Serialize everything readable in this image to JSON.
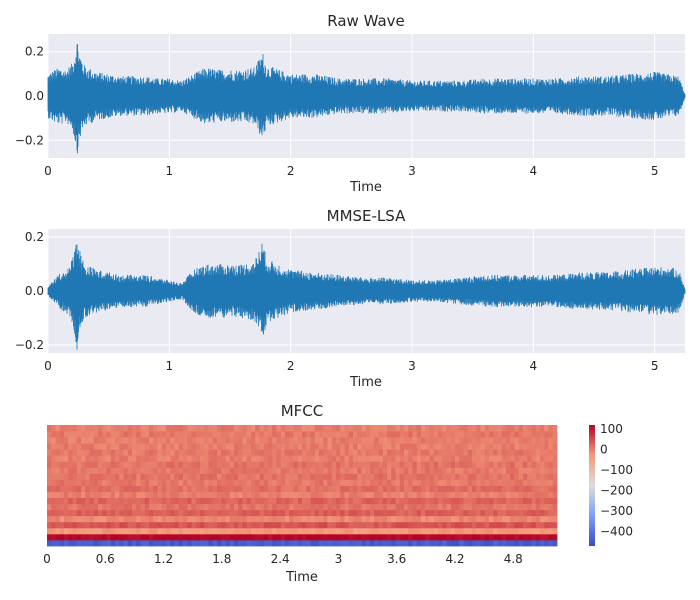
{
  "chart_data": [
    {
      "type": "line",
      "title": "Raw Wave",
      "xlabel": "Time",
      "ylabel": "",
      "xlim": [
        0,
        5.25
      ],
      "ylim": [
        -0.28,
        0.28
      ],
      "xticks": [
        0,
        1,
        2,
        3,
        4,
        5
      ],
      "yticks": [
        -0.2,
        0.0,
        0.2
      ],
      "xtick_labels": [
        "0",
        "1",
        "2",
        "3",
        "4",
        "5"
      ],
      "ytick_labels": [
        "−0.2",
        "0.0",
        "0.2"
      ],
      "grid": true,
      "series_color": "#1f77b4",
      "envelope": {
        "time": [
          0,
          0.05,
          0.1,
          0.15,
          0.2,
          0.22,
          0.24,
          0.26,
          0.3,
          0.4,
          0.5,
          0.6,
          0.7,
          0.8,
          0.9,
          1.0,
          1.1,
          1.2,
          1.3,
          1.4,
          1.5,
          1.6,
          1.7,
          1.77,
          1.8,
          1.9,
          2.0,
          2.2,
          2.4,
          2.6,
          2.8,
          3.0,
          3.2,
          3.4,
          3.6,
          3.8,
          4.0,
          4.2,
          4.4,
          4.6,
          4.8,
          5.0,
          5.1,
          5.2,
          5.25
        ],
        "amplitude": [
          0.1,
          0.12,
          0.13,
          0.12,
          0.15,
          0.2,
          0.27,
          0.2,
          0.14,
          0.11,
          0.1,
          0.09,
          0.09,
          0.09,
          0.08,
          0.08,
          0.07,
          0.1,
          0.13,
          0.12,
          0.12,
          0.12,
          0.13,
          0.2,
          0.14,
          0.12,
          0.1,
          0.1,
          0.08,
          0.08,
          0.08,
          0.07,
          0.07,
          0.07,
          0.08,
          0.08,
          0.08,
          0.08,
          0.09,
          0.09,
          0.1,
          0.11,
          0.1,
          0.09,
          0.01
        ]
      }
    },
    {
      "type": "line",
      "title": "MMSE-LSA",
      "xlabel": "Time",
      "ylabel": "",
      "xlim": [
        0,
        5.25
      ],
      "ylim": [
        -0.23,
        0.23
      ],
      "xticks": [
        0,
        1,
        2,
        3,
        4,
        5
      ],
      "yticks": [
        -0.2,
        0.0,
        0.2
      ],
      "xtick_labels": [
        "0",
        "1",
        "2",
        "3",
        "4",
        "5"
      ],
      "ytick_labels": [
        "−0.2",
        "0.0",
        "0.2"
      ],
      "grid": true,
      "series_color": "#1f77b4",
      "envelope": {
        "time": [
          0,
          0.05,
          0.1,
          0.15,
          0.2,
          0.22,
          0.24,
          0.26,
          0.3,
          0.4,
          0.5,
          0.6,
          0.7,
          0.8,
          0.9,
          1.0,
          1.1,
          1.2,
          1.3,
          1.4,
          1.5,
          1.6,
          1.7,
          1.77,
          1.8,
          1.9,
          2.0,
          2.2,
          2.4,
          2.6,
          2.8,
          3.0,
          3.2,
          3.4,
          3.6,
          3.8,
          4.0,
          4.2,
          4.4,
          4.6,
          4.8,
          5.0,
          5.1,
          5.2,
          5.25
        ],
        "amplitude": [
          0.02,
          0.04,
          0.07,
          0.08,
          0.12,
          0.17,
          0.22,
          0.16,
          0.1,
          0.08,
          0.07,
          0.06,
          0.06,
          0.06,
          0.05,
          0.04,
          0.03,
          0.08,
          0.1,
          0.1,
          0.1,
          0.1,
          0.11,
          0.19,
          0.12,
          0.1,
          0.08,
          0.07,
          0.06,
          0.05,
          0.05,
          0.04,
          0.04,
          0.05,
          0.06,
          0.06,
          0.06,
          0.06,
          0.07,
          0.07,
          0.08,
          0.09,
          0.09,
          0.08,
          0.01
        ]
      }
    },
    {
      "type": "heatmap",
      "title": "MFCC",
      "xlabel": "Time",
      "ylabel": "",
      "xlim": [
        0,
        5.25
      ],
      "xticks": [
        0,
        0.6,
        1.2,
        1.8,
        2.4,
        3.0,
        3.6,
        4.2,
        4.8
      ],
      "xtick_labels": [
        "0",
        "0.6",
        "1.2",
        "1.8",
        "2.4",
        "3",
        "3.6",
        "4.2",
        "4.8"
      ],
      "coefficients": 20,
      "colormap": "coolwarm",
      "colorbar": {
        "range": [
          -470,
          120
        ],
        "ticks": [
          100,
          0,
          -100,
          -200,
          -300,
          -400
        ],
        "tick_labels": [
          "100",
          "0",
          "−100",
          "−200",
          "−300",
          "−400"
        ]
      },
      "coefficient_means": [
        -440,
        120,
        -30,
        40,
        -10,
        30,
        10,
        25,
        0,
        15,
        5,
        10,
        5,
        10,
        0,
        5,
        0,
        0,
        5,
        0
      ]
    }
  ]
}
